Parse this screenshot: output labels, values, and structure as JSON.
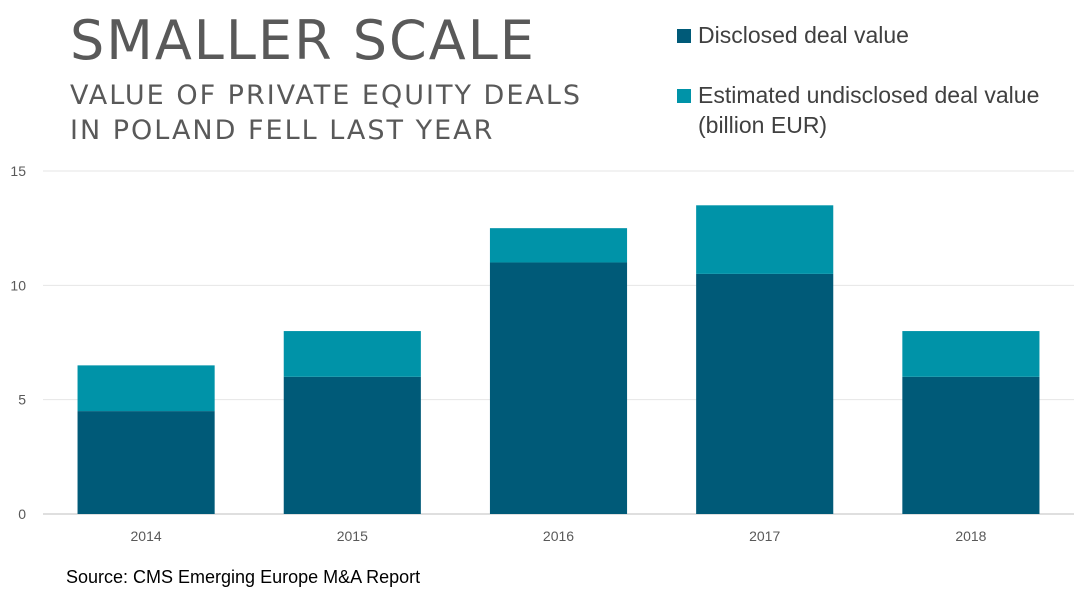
{
  "header": {
    "title": "SMALLER SCALE",
    "subtitle_lines": [
      "VALUE OF PRIVATE EQUITY DEALS",
      "IN POLAND FELL LAST YEAR"
    ]
  },
  "legend": {
    "disclosed_label": "Disclosed deal value",
    "undisclosed_label_lines": [
      "Estimated undisclosed deal value",
      "(billion EUR)"
    ]
  },
  "source": "Source: CMS Emerging Europe M&A Report",
  "colors": {
    "disclosed": "#005a78",
    "undisclosed": "#0093a8",
    "grid": "#e6e6e6",
    "axis": "#bfbfbf"
  },
  "chart_data": {
    "type": "bar",
    "stacked": true,
    "categories": [
      "2014",
      "2015",
      "2016",
      "2017",
      "2018"
    ],
    "series": [
      {
        "name": "Disclosed deal value",
        "values": [
          4.5,
          6,
          11,
          10.5,
          6
        ]
      },
      {
        "name": "Estimated undisclosed deal value",
        "values": [
          2,
          2,
          1.5,
          3,
          2
        ]
      }
    ],
    "yticks": [
      0,
      5,
      10,
      15
    ],
    "ylim": [
      0,
      15
    ],
    "grid": true,
    "legend_position": "top-right"
  }
}
